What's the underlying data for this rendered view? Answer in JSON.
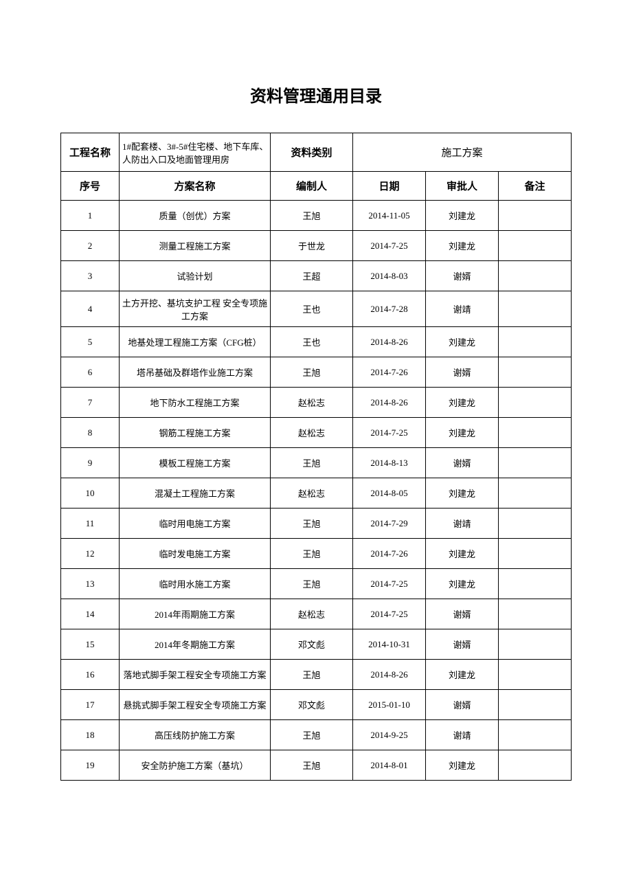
{
  "title": "资料管理通用目录",
  "header": {
    "project_label": "工程名称",
    "project_value": "1#配套楼、3#-5#住宅楼、地下车库、人防出入口及地面管理用房",
    "category_label": "资料类别",
    "category_value": "施工方案"
  },
  "columns": {
    "seq": "序号",
    "name": "方案名称",
    "author": "编制人",
    "date": "日期",
    "approver": "审批人",
    "remark": "备注"
  },
  "rows": [
    {
      "seq": "1",
      "name": "质量（创优）方案",
      "author": "王旭",
      "date": "2014-11-05",
      "approver": "刘建龙",
      "remark": ""
    },
    {
      "seq": "2",
      "name": "测量工程施工方案",
      "author": "于世龙",
      "date": "2014-7-25",
      "approver": "刘建龙",
      "remark": ""
    },
    {
      "seq": "3",
      "name": "试验计划",
      "author": "王超",
      "date": "2014-8-03",
      "approver": "谢婿",
      "remark": ""
    },
    {
      "seq": "4",
      "name": "土方开挖、基坑支护工程 安全专项施工方案",
      "author": "王也",
      "date": "2014-7-28",
      "approver": "谢靖",
      "remark": ""
    },
    {
      "seq": "5",
      "name": "地基处理工程施工方案（CFG桩）",
      "author": "王也",
      "date": "2014-8-26",
      "approver": "刘建龙",
      "remark": ""
    },
    {
      "seq": "6",
      "name": "塔吊基础及群塔作业施工方案",
      "author": "王旭",
      "date": "2014-7-26",
      "approver": "谢婿",
      "remark": ""
    },
    {
      "seq": "7",
      "name": "地下防水工程施工方案",
      "author": "赵松志",
      "date": "2014-8-26",
      "approver": "刘建龙",
      "remark": ""
    },
    {
      "seq": "8",
      "name": "钢筋工程施工方案",
      "author": "赵松志",
      "date": "2014-7-25",
      "approver": "刘建龙",
      "remark": ""
    },
    {
      "seq": "9",
      "name": "模板工程施工方案",
      "author": "王旭",
      "date": "2014-8-13",
      "approver": "谢婿",
      "remark": ""
    },
    {
      "seq": "10",
      "name": "混凝土工程施工方案",
      "author": "赵松志",
      "date": "2014-8-05",
      "approver": "刘建龙",
      "remark": ""
    },
    {
      "seq": "11",
      "name": "临时用电施工方案",
      "author": "王旭",
      "date": "2014-7-29",
      "approver": "谢靖",
      "remark": ""
    },
    {
      "seq": "12",
      "name": "临时发电施工方案",
      "author": "王旭",
      "date": "2014-7-26",
      "approver": "刘建龙",
      "remark": ""
    },
    {
      "seq": "13",
      "name": "临时用水施工方案",
      "author": "王旭",
      "date": "2014-7-25",
      "approver": "刘建龙",
      "remark": ""
    },
    {
      "seq": "14",
      "name": "2014年雨期施工方案",
      "author": "赵松志",
      "date": "2014-7-25",
      "approver": "谢婿",
      "remark": ""
    },
    {
      "seq": "15",
      "name": "2014年冬期施工方案",
      "author": "邓文彪",
      "date": "2014-10-31",
      "approver": "谢婿",
      "remark": ""
    },
    {
      "seq": "16",
      "name": "落地式脚手架工程安全专项施工方案",
      "author": "王旭",
      "date": "2014-8-26",
      "approver": "刘建龙",
      "remark": ""
    },
    {
      "seq": "17",
      "name": "悬挑式脚手架工程安全专项施工方案",
      "author": "邓文彪",
      "date": "2015-01-10",
      "approver": "谢婿",
      "remark": ""
    },
    {
      "seq": "18",
      "name": "高压线防护施工方案",
      "author": "王旭",
      "date": "2014-9-25",
      "approver": "谢靖",
      "remark": ""
    },
    {
      "seq": "19",
      "name": "安全防护施工方案（基坑）",
      "author": "王旭",
      "date": "2014-8-01",
      "approver": "刘建龙",
      "remark": ""
    }
  ]
}
